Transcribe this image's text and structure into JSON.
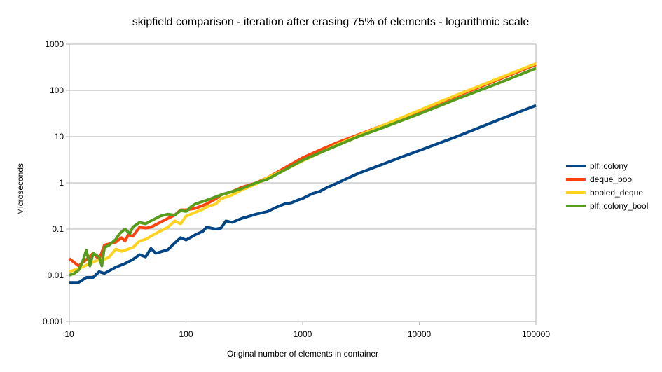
{
  "chart_data": {
    "type": "line",
    "title": "skipfield comparison - iteration after erasing 75% of elements - logarithmic scale",
    "xlabel": "Original number of elements in container",
    "ylabel": "Microseconds",
    "x_scale": "log",
    "y_scale": "log",
    "xlim": [
      10,
      100000
    ],
    "ylim": [
      0.001,
      1000
    ],
    "x_ticks": [
      "10",
      "100",
      "1000",
      "10000",
      "100000"
    ],
    "y_ticks": [
      "0.001",
      "0.01",
      "0.1",
      "1",
      "10",
      "100",
      "1000"
    ],
    "grid": "horizontal",
    "legend_position": "right",
    "series": [
      {
        "name": "plf::colony",
        "color": "#004586",
        "points": [
          [
            10,
            0.007
          ],
          [
            12,
            0.007
          ],
          [
            14,
            0.009
          ],
          [
            16,
            0.009
          ],
          [
            18,
            0.012
          ],
          [
            20,
            0.011
          ],
          [
            25,
            0.015
          ],
          [
            30,
            0.018
          ],
          [
            35,
            0.022
          ],
          [
            40,
            0.028
          ],
          [
            45,
            0.025
          ],
          [
            50,
            0.038
          ],
          [
            55,
            0.03
          ],
          [
            60,
            0.032
          ],
          [
            70,
            0.036
          ],
          [
            80,
            0.05
          ],
          [
            90,
            0.065
          ],
          [
            100,
            0.058
          ],
          [
            120,
            0.075
          ],
          [
            140,
            0.09
          ],
          [
            150,
            0.11
          ],
          [
            180,
            0.1
          ],
          [
            200,
            0.105
          ],
          [
            220,
            0.15
          ],
          [
            250,
            0.14
          ],
          [
            300,
            0.17
          ],
          [
            350,
            0.19
          ],
          [
            400,
            0.21
          ],
          [
            500,
            0.24
          ],
          [
            600,
            0.3
          ],
          [
            700,
            0.35
          ],
          [
            800,
            0.37
          ],
          [
            900,
            0.42
          ],
          [
            1000,
            0.46
          ],
          [
            1200,
            0.58
          ],
          [
            1400,
            0.65
          ],
          [
            1600,
            0.78
          ],
          [
            2000,
            1.0
          ],
          [
            2500,
            1.3
          ],
          [
            3000,
            1.6
          ],
          [
            4000,
            2.1
          ],
          [
            5000,
            2.6
          ],
          [
            7000,
            3.6
          ],
          [
            10000,
            5.0
          ],
          [
            20000,
            9.6
          ],
          [
            50000,
            24
          ],
          [
            100000,
            47
          ]
        ]
      },
      {
        "name": "deque_bool",
        "color": "#ff420e",
        "points": [
          [
            10,
            0.023
          ],
          [
            12,
            0.016
          ],
          [
            14,
            0.022
          ],
          [
            16,
            0.03
          ],
          [
            18,
            0.022
          ],
          [
            20,
            0.045
          ],
          [
            25,
            0.052
          ],
          [
            28,
            0.065
          ],
          [
            30,
            0.055
          ],
          [
            32,
            0.075
          ],
          [
            35,
            0.07
          ],
          [
            40,
            0.11
          ],
          [
            45,
            0.105
          ],
          [
            50,
            0.11
          ],
          [
            60,
            0.14
          ],
          [
            70,
            0.17
          ],
          [
            80,
            0.2
          ],
          [
            90,
            0.26
          ],
          [
            100,
            0.26
          ],
          [
            120,
            0.28
          ],
          [
            150,
            0.35
          ],
          [
            180,
            0.45
          ],
          [
            200,
            0.55
          ],
          [
            250,
            0.65
          ],
          [
            300,
            0.8
          ],
          [
            400,
            1.0
          ],
          [
            500,
            1.3
          ],
          [
            700,
            2.1
          ],
          [
            1000,
            3.5
          ],
          [
            1500,
            5.5
          ],
          [
            2000,
            7.5
          ],
          [
            3000,
            11
          ],
          [
            5000,
            18
          ],
          [
            10000,
            36
          ],
          [
            20000,
            72
          ],
          [
            50000,
            180
          ],
          [
            100000,
            360
          ]
        ]
      },
      {
        "name": "booled_deque",
        "color": "#ffd320",
        "points": [
          [
            10,
            0.012
          ],
          [
            12,
            0.014
          ],
          [
            15,
            0.018
          ],
          [
            18,
            0.022
          ],
          [
            20,
            0.022
          ],
          [
            22,
            0.025
          ],
          [
            25,
            0.037
          ],
          [
            28,
            0.033
          ],
          [
            30,
            0.035
          ],
          [
            35,
            0.04
          ],
          [
            40,
            0.055
          ],
          [
            45,
            0.06
          ],
          [
            50,
            0.07
          ],
          [
            60,
            0.09
          ],
          [
            70,
            0.11
          ],
          [
            80,
            0.15
          ],
          [
            90,
            0.13
          ],
          [
            100,
            0.19
          ],
          [
            120,
            0.23
          ],
          [
            140,
            0.27
          ],
          [
            150,
            0.3
          ],
          [
            180,
            0.35
          ],
          [
            200,
            0.45
          ],
          [
            250,
            0.55
          ],
          [
            300,
            0.7
          ],
          [
            400,
            0.95
          ],
          [
            500,
            1.3
          ],
          [
            700,
            1.9
          ],
          [
            1000,
            3.0
          ],
          [
            1500,
            4.8
          ],
          [
            2000,
            6.8
          ],
          [
            3000,
            10.5
          ],
          [
            5000,
            18
          ],
          [
            10000,
            37
          ],
          [
            20000,
            76
          ],
          [
            50000,
            190
          ],
          [
            100000,
            380
          ]
        ]
      },
      {
        "name": "plf::colony_bool",
        "color": "#579d1c",
        "points": [
          [
            10,
            0.01
          ],
          [
            11,
            0.011
          ],
          [
            12,
            0.013
          ],
          [
            13,
            0.02
          ],
          [
            14,
            0.035
          ],
          [
            15,
            0.016
          ],
          [
            16,
            0.03
          ],
          [
            18,
            0.025
          ],
          [
            19,
            0.016
          ],
          [
            20,
            0.04
          ],
          [
            22,
            0.045
          ],
          [
            25,
            0.06
          ],
          [
            27,
            0.08
          ],
          [
            30,
            0.1
          ],
          [
            33,
            0.08
          ],
          [
            35,
            0.11
          ],
          [
            40,
            0.14
          ],
          [
            45,
            0.13
          ],
          [
            50,
            0.15
          ],
          [
            60,
            0.19
          ],
          [
            70,
            0.21
          ],
          [
            80,
            0.2
          ],
          [
            90,
            0.25
          ],
          [
            100,
            0.24
          ],
          [
            110,
            0.3
          ],
          [
            120,
            0.35
          ],
          [
            150,
            0.42
          ],
          [
            200,
            0.55
          ],
          [
            250,
            0.65
          ],
          [
            300,
            0.75
          ],
          [
            400,
            1.0
          ],
          [
            500,
            1.2
          ],
          [
            700,
            1.9
          ],
          [
            1000,
            3.1
          ],
          [
            1500,
            4.8
          ],
          [
            2000,
            6.5
          ],
          [
            3000,
            10
          ],
          [
            5000,
            16
          ],
          [
            10000,
            31
          ],
          [
            20000,
            62
          ],
          [
            50000,
            150
          ],
          [
            100000,
            300
          ]
        ]
      }
    ]
  }
}
